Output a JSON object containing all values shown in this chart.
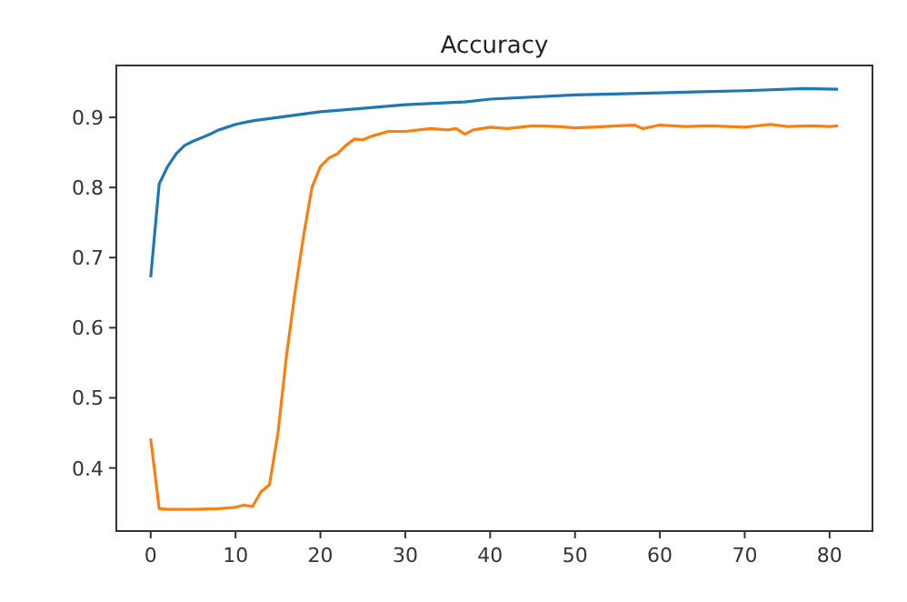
{
  "chart_data": {
    "type": "line",
    "title": "Accuracy",
    "xlim": [
      -4.05,
      85.05
    ],
    "ylim": [
      0.31,
      0.974
    ],
    "xticks": [
      0,
      10,
      20,
      30,
      40,
      50,
      60,
      70,
      80
    ],
    "yticks": [
      {
        "value": 0.4,
        "label": "0.4"
      },
      {
        "value": 0.5,
        "label": "0.5"
      },
      {
        "value": 0.6,
        "label": "0.6"
      },
      {
        "value": 0.7,
        "label": "0.7"
      },
      {
        "value": 0.8,
        "label": "0.8"
      },
      {
        "value": 0.9,
        "label": "0.9"
      }
    ],
    "grid": false,
    "series": [
      {
        "color": "#1f77b4",
        "x": [
          0,
          1,
          2,
          3,
          4,
          5,
          6,
          7,
          8,
          9,
          10,
          12,
          15,
          20,
          25,
          30,
          37,
          40,
          50,
          60,
          70,
          77,
          81
        ],
        "values": [
          0.672,
          0.805,
          0.83,
          0.848,
          0.86,
          0.866,
          0.871,
          0.876,
          0.882,
          0.886,
          0.89,
          0.895,
          0.9,
          0.908,
          0.913,
          0.918,
          0.922,
          0.926,
          0.932,
          0.935,
          0.938,
          0.941,
          0.94
        ]
      },
      {
        "color": "#ff7f0e",
        "x": [
          0,
          1,
          2,
          5,
          8,
          10,
          11,
          12,
          13,
          14,
          15,
          16,
          17,
          18,
          19,
          20,
          21,
          22,
          23,
          24,
          25,
          26,
          28,
          30,
          33,
          35,
          36,
          37,
          38,
          40,
          42,
          45,
          48,
          50,
          52,
          55,
          57,
          58,
          60,
          63,
          66,
          70,
          73,
          75,
          78,
          80,
          81
        ],
        "values": [
          0.442,
          0.342,
          0.341,
          0.341,
          0.342,
          0.344,
          0.347,
          0.345,
          0.366,
          0.376,
          0.45,
          0.56,
          0.65,
          0.73,
          0.8,
          0.83,
          0.842,
          0.848,
          0.86,
          0.869,
          0.868,
          0.873,
          0.88,
          0.88,
          0.884,
          0.882,
          0.884,
          0.876,
          0.882,
          0.886,
          0.884,
          0.888,
          0.887,
          0.885,
          0.886,
          0.888,
          0.889,
          0.884,
          0.889,
          0.887,
          0.888,
          0.886,
          0.89,
          0.887,
          0.888,
          0.887,
          0.888
        ]
      }
    ]
  }
}
